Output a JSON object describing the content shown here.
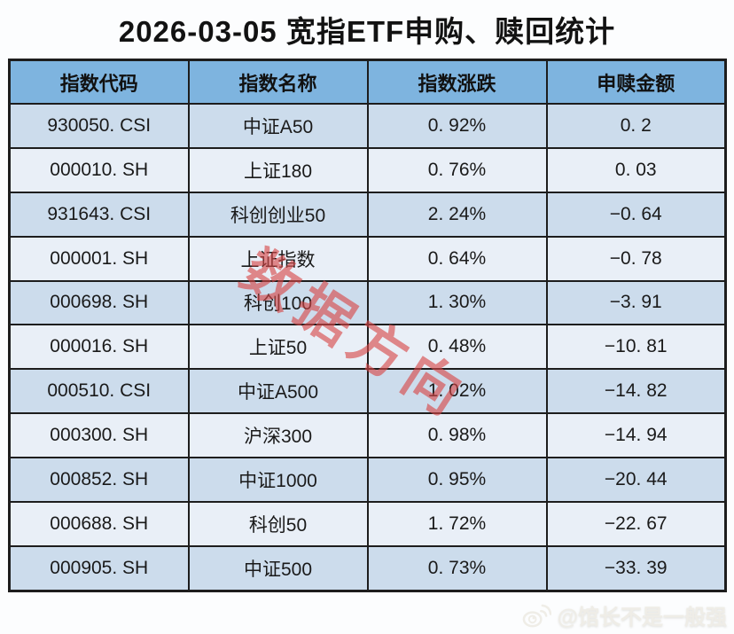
{
  "title": "2026-03-05 宽指ETF申购、赎回统计",
  "table": {
    "columns": [
      "指数代码",
      "指数名称",
      "指数涨跌",
      "申赎金额"
    ],
    "rows": [
      {
        "code": "930050. CSI",
        "name": "中证A50",
        "change": "0. 92%",
        "amount": "0. 2"
      },
      {
        "code": "000010. SH",
        "name": "上证180",
        "change": "0. 76%",
        "amount": "0. 03"
      },
      {
        "code": "931643. CSI",
        "name": "科创创业50",
        "change": "2. 24%",
        "amount": "−0. 64"
      },
      {
        "code": "000001. SH",
        "name": "上证指数",
        "change": "0. 64%",
        "amount": "−0. 78"
      },
      {
        "code": "000698. SH",
        "name": "科创100",
        "change": "1. 30%",
        "amount": "−3. 91"
      },
      {
        "code": "000016. SH",
        "name": "上证50",
        "change": "0. 48%",
        "amount": "−10. 81"
      },
      {
        "code": "000510. CSI",
        "name": "中证A500",
        "change": "1. 02%",
        "amount": "−14. 82"
      },
      {
        "code": "000300. SH",
        "name": "沪深300",
        "change": "0. 98%",
        "amount": "−14. 94"
      },
      {
        "code": "000852. SH",
        "name": "中证1000",
        "change": "0. 95%",
        "amount": "−20. 44"
      },
      {
        "code": "000688. SH",
        "name": "科创50",
        "change": "1. 72%",
        "amount": "−22. 67"
      },
      {
        "code": "000905. SH",
        "name": "中证500",
        "change": "0. 73%",
        "amount": "−33. 39"
      }
    ]
  },
  "watermark": {
    "text": "数据方向",
    "color": "#d84646"
  },
  "credit": {
    "icon": "weibo-icon",
    "text": "@馆长不是一般强"
  },
  "colors": {
    "header_blue": "#7eb4df",
    "row_odd": "#ccdcec",
    "row_even": "#e9eff7",
    "border": "#1d1d1d",
    "watermark_red": "#d84646"
  },
  "chart_data": {
    "type": "table",
    "title": "2026-03-05 宽指ETF申购、赎回统计",
    "columns": [
      "指数代码",
      "指数名称",
      "指数涨跌",
      "申赎金额"
    ],
    "rows": [
      {
        "index_code": "930050.CSI",
        "index_name": "中证A50",
        "change_pct": 0.92,
        "amount": 0.2
      },
      {
        "index_code": "000010.SH",
        "index_name": "上证180",
        "change_pct": 0.76,
        "amount": 0.03
      },
      {
        "index_code": "931643.CSI",
        "index_name": "科创创业50",
        "change_pct": 2.24,
        "amount": -0.64
      },
      {
        "index_code": "000001.SH",
        "index_name": "上证指数",
        "change_pct": 0.64,
        "amount": -0.78
      },
      {
        "index_code": "000698.SH",
        "index_name": "科创100",
        "change_pct": 1.3,
        "amount": -3.91
      },
      {
        "index_code": "000016.SH",
        "index_name": "上证50",
        "change_pct": 0.48,
        "amount": -10.81
      },
      {
        "index_code": "000510.CSI",
        "index_name": "中证A500",
        "change_pct": 1.02,
        "amount": -14.82
      },
      {
        "index_code": "000300.SH",
        "index_name": "沪深300",
        "change_pct": 0.98,
        "amount": -14.94
      },
      {
        "index_code": "000852.SH",
        "index_name": "中证1000",
        "change_pct": 0.95,
        "amount": -20.44
      },
      {
        "index_code": "000688.SH",
        "index_name": "科创50",
        "change_pct": 1.72,
        "amount": -22.67
      },
      {
        "index_code": "000905.SH",
        "index_name": "中证500",
        "change_pct": 0.73,
        "amount": -33.39
      }
    ]
  }
}
